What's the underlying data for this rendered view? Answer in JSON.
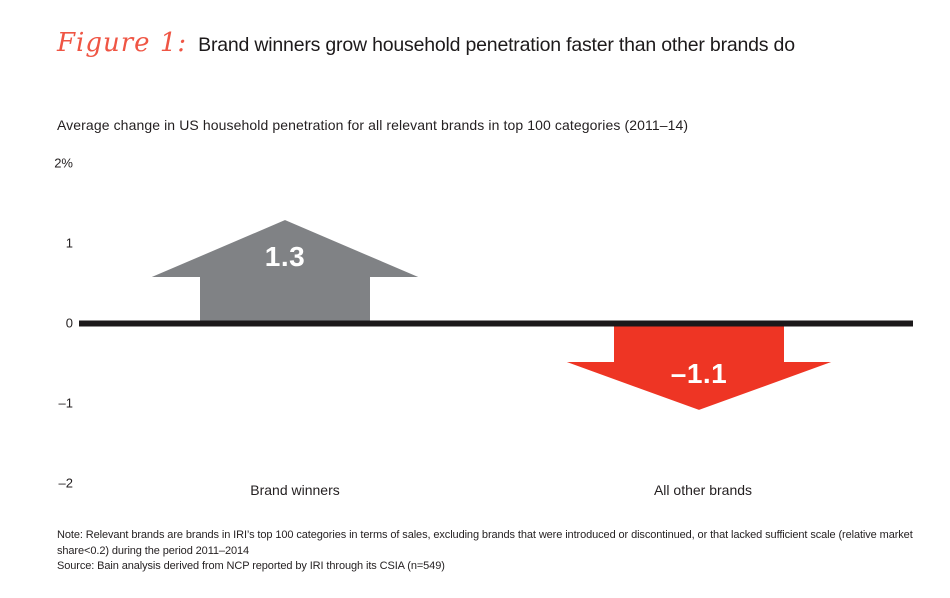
{
  "figure": {
    "label": "Figure 1:",
    "title": "Brand winners grow household penetration faster than other brands do"
  },
  "subtitle": "Average change in US household penetration for all relevant brands in top 100 categories (2011–14)",
  "chart_data": {
    "type": "bar",
    "style": "block-arrows",
    "title": "Average change in US household penetration for all relevant brands in top 100 categories (2011–14)",
    "categories": [
      "Brand winners",
      "All other brands"
    ],
    "values": [
      1.3,
      -1.1
    ],
    "value_labels": [
      "1.3",
      "–1.1"
    ],
    "xlabel": "",
    "ylabel": "",
    "ylim": [
      -2,
      2
    ],
    "yticks": [
      {
        "value": 2,
        "label": "2%"
      },
      {
        "value": 1,
        "label": "1"
      },
      {
        "value": 0,
        "label": "0"
      },
      {
        "value": -1,
        "label": "–1"
      },
      {
        "value": -2,
        "label": "–2"
      }
    ],
    "baseline": 0,
    "grid": false,
    "legend": false,
    "colors": {
      "positive": "#808285",
      "negative": "#ee3524",
      "axis": "#1c191a",
      "value_text": "#ffffff",
      "tick_text": "#231f20"
    }
  },
  "notes": {
    "note": "Note: Relevant brands are brands in IRI’s top 100 categories in terms of sales, excluding brands that were introduced or discontinued, or that lacked sufficient scale (relative market share<0.2) during the period 2011–2014",
    "source": "Source: Bain analysis derived from NCP reported by IRI through its CSIA (n=549)"
  }
}
